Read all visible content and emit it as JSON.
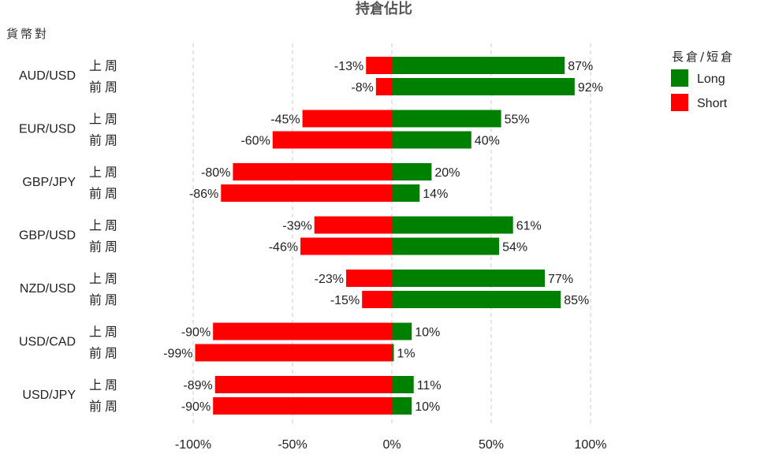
{
  "chart_data": {
    "type": "bar",
    "orientation": "horizontal",
    "title": "持倉佔比",
    "ylabel": "貨幣對",
    "categories": [
      "AUD/USD",
      "EUR/USD",
      "GBP/JPY",
      "GBP/USD",
      "NZD/USD",
      "USD/CAD",
      "USD/JPY"
    ],
    "periods": [
      "上周",
      "前周"
    ],
    "series": [
      {
        "name": "Long",
        "color": "#008000",
        "values": [
          [
            87,
            92
          ],
          [
            55,
            40
          ],
          [
            20,
            14
          ],
          [
            61,
            54
          ],
          [
            77,
            85
          ],
          [
            10,
            1
          ],
          [
            11,
            10
          ]
        ],
        "labels": [
          [
            "87%",
            "92%"
          ],
          [
            "55%",
            "40%"
          ],
          [
            "20%",
            "14%"
          ],
          [
            "61%",
            "54%"
          ],
          [
            "77%",
            "85%"
          ],
          [
            "10%",
            "1%"
          ],
          [
            "11%",
            "10%"
          ]
        ]
      },
      {
        "name": "Short",
        "color": "#ff0000",
        "values": [
          [
            -13,
            -8
          ],
          [
            -45,
            -60
          ],
          [
            -80,
            -86
          ],
          [
            -39,
            -46
          ],
          [
            -23,
            -15
          ],
          [
            -90,
            -99
          ],
          [
            -89,
            -90
          ]
        ],
        "labels": [
          [
            "-13%",
            "-8%"
          ],
          [
            "-45%",
            "-60%"
          ],
          [
            "-80%",
            "-86%"
          ],
          [
            "-39%",
            "-46%"
          ],
          [
            "-23%",
            "-15%"
          ],
          [
            "-90%",
            "-99%"
          ],
          [
            "-89%",
            "-90%"
          ]
        ]
      }
    ],
    "xlim": [
      -100,
      100
    ],
    "xticks": [
      -100,
      -50,
      0,
      50,
      100
    ],
    "xtick_labels": [
      "-100%",
      "-50%",
      "0%",
      "50%",
      "100%"
    ],
    "grid": "vertical dashed",
    "legend": {
      "title": "長倉/短倉",
      "position": "top-right",
      "entries": [
        "Long",
        "Short"
      ]
    }
  }
}
